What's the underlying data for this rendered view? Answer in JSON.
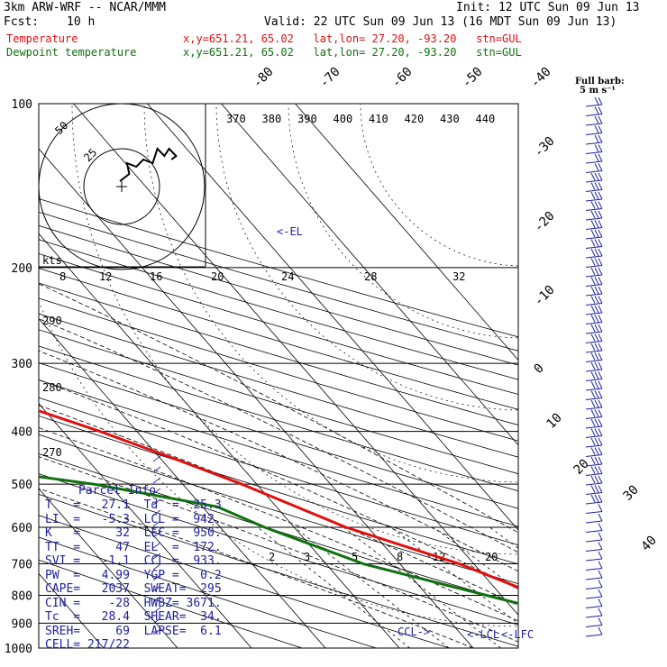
{
  "header": {
    "model": "3km ARW-WRF -- NCAR/MMM",
    "init": "Init: 12 UTC Sun 09 Jun 13",
    "fcst_label": "Fcst:",
    "fcst_value": "10 h",
    "valid": "Valid: 22 UTC Sun 09 Jun 13 (16 MDT Sun 09 Jun 13)",
    "temp_label": "Temperature",
    "temp_info": "x,y=651.21, 65.02   lat,lon= 27.20, -93.20   stn=GUL",
    "dewp_label": "Dewpoint temperature",
    "dewp_info": "x,y=651.21, 65.02   lat,lon= 27.20, -93.20   stn=GUL"
  },
  "barb_legend": {
    "title": "Full barb:",
    "value": "5 m s⁻¹"
  },
  "el_marker": "<-EL",
  "lcl_markers": {
    "ccl": "CCL->",
    "lcl": "<-LCL",
    "lfc": "<-LFC"
  },
  "kts_label": "kts",
  "parcel": {
    "title": "Parcel Info",
    "rows": [
      "T   =   27.1  Td  =  25.3",
      "LI  =   -5.3  LCL =  942.",
      "K   =     32  LFC =  950.",
      "TT  =     47  EL  =  172.",
      "SVI =   -1.1  CCL =  933.",
      "PW  =   4.99  YGP =   0.2",
      "CAPE=   2037  SWEAT=  295",
      "CIN =    -28  HWBZ= 3671.",
      "Tc  =   28.4  SHEAR=  34.",
      "SREH=     69  LAPSE=  6.1",
      "CELL= 217/22"
    ]
  },
  "hodograph": {
    "ring_labels": [
      "25",
      "50"
    ]
  },
  "colors": {
    "temperature": "#e01010",
    "dewpoint": "#107010",
    "annotation": "#2020a0"
  },
  "chart_data": {
    "type": "line",
    "title": "",
    "ylabel": "",
    "xlabel": "",
    "pressure_levels": [
      100,
      200,
      300,
      400,
      500,
      600,
      700,
      800,
      900,
      1000
    ],
    "isotherm_labels": [
      "-80",
      "-70",
      "-60",
      "-50",
      "-40",
      "-30",
      "-20",
      "-10",
      "0",
      "10",
      "20",
      "30",
      "40"
    ],
    "theta_labels": [
      "370",
      "380",
      "390",
      "400",
      "410",
      "420",
      "430",
      "440"
    ],
    "theta_lower_labels": [
      "290",
      "280",
      "270"
    ],
    "mixing_ratio_labels": [
      "2",
      "3",
      "5",
      "8",
      "12",
      "20"
    ],
    "wind_speed_labels": [
      "8",
      "12",
      "16",
      "20",
      "24",
      "28",
      "32"
    ],
    "series": [
      {
        "name": "Temperature",
        "color": "#e01010",
        "points": [
          {
            "p": 100,
            "t": -63
          },
          {
            "p": 125,
            "t": -66
          },
          {
            "p": 150,
            "t": -68
          },
          {
            "p": 172,
            "t": -69
          },
          {
            "p": 200,
            "t": -65
          },
          {
            "p": 250,
            "t": -53
          },
          {
            "p": 300,
            "t": -43
          },
          {
            "p": 350,
            "t": -34
          },
          {
            "p": 400,
            "t": -25
          },
          {
            "p": 450,
            "t": -18
          },
          {
            "p": 500,
            "t": -12
          },
          {
            "p": 600,
            "t": -3
          },
          {
            "p": 700,
            "t": 8
          },
          {
            "p": 800,
            "t": 15
          },
          {
            "p": 850,
            "t": 19
          },
          {
            "p": 900,
            "t": 22
          },
          {
            "p": 950,
            "t": 25
          },
          {
            "p": 1000,
            "t": 27.1
          }
        ]
      },
      {
        "name": "Dewpoint temperature",
        "color": "#107010",
        "points": [
          {
            "p": 100,
            "t": -80
          },
          {
            "p": 125,
            "t": -83
          },
          {
            "p": 150,
            "t": -82
          },
          {
            "p": 172,
            "t": -80
          },
          {
            "p": 200,
            "t": -74
          },
          {
            "p": 250,
            "t": -64
          },
          {
            "p": 300,
            "t": -53
          },
          {
            "p": 350,
            "t": -51
          },
          {
            "p": 400,
            "t": -48
          },
          {
            "p": 450,
            "t": -49
          },
          {
            "p": 470,
            "t": -45
          },
          {
            "p": 500,
            "t": -32
          },
          {
            "p": 550,
            "t": -18
          },
          {
            "p": 600,
            "t": -14
          },
          {
            "p": 700,
            "t": -5
          },
          {
            "p": 800,
            "t": 8
          },
          {
            "p": 850,
            "t": 14
          },
          {
            "p": 900,
            "t": 19
          },
          {
            "p": 950,
            "t": 23
          },
          {
            "p": 1000,
            "t": 25.3
          }
        ]
      }
    ],
    "hodograph_points": [
      [
        -20,
        -0.5
      ],
      [
        -16,
        -1.5
      ],
      [
        -17,
        -3
      ],
      [
        -13,
        -2.5
      ],
      [
        -10,
        -3.5
      ],
      [
        -6,
        -3
      ],
      [
        -4,
        -5
      ],
      [
        -1,
        -4
      ],
      [
        1,
        -5
      ],
      [
        4,
        -4
      ],
      [
        2,
        -3.5
      ]
    ]
  }
}
